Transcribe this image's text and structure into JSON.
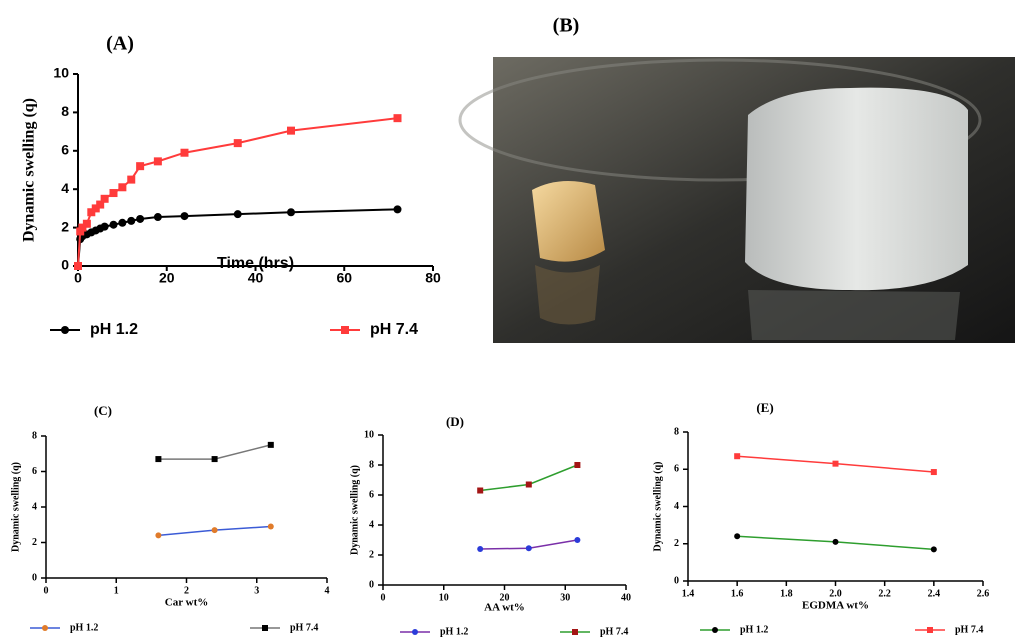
{
  "photo": {
    "label": "(B)"
  },
  "chart_data": [
    {
      "type": "line",
      "title": "(A)",
      "xlabel": "Time (hrs)",
      "ylabel": "Dynamic swelling (q)",
      "x": [
        0,
        0.5,
        1,
        2,
        3,
        4,
        5,
        6,
        8,
        10,
        12,
        14,
        18,
        24,
        36,
        48,
        72
      ],
      "series": [
        {
          "name": "pH 1.2",
          "color": "#000000",
          "line_color": "#000000",
          "marker": "circle",
          "values": [
            0,
            1.4,
            1.55,
            1.65,
            1.75,
            1.85,
            1.95,
            2.05,
            2.15,
            2.25,
            2.35,
            2.45,
            2.55,
            2.6,
            2.7,
            2.8,
            2.95
          ]
        },
        {
          "name": "pH 7.4",
          "color": "#ff3b3b",
          "line_color": "#ff3b3b",
          "marker": "square",
          "values": [
            0,
            1.8,
            2.0,
            2.2,
            2.8,
            3.0,
            3.2,
            3.5,
            3.8,
            4.1,
            4.5,
            5.2,
            5.45,
            5.9,
            6.4,
            7.05,
            7.7
          ]
        }
      ],
      "xlim": [
        0,
        80
      ],
      "xticks": [
        0,
        20,
        40,
        60,
        80
      ],
      "ylim": [
        0,
        10
      ],
      "yticks": [
        0,
        2,
        4,
        6,
        8,
        10
      ]
    },
    {
      "type": "line",
      "title": "(C)",
      "xlabel": "Car wt%",
      "ylabel": "Dynamic swelling (q)",
      "x": [
        1.6,
        2.4,
        3.2
      ],
      "series": [
        {
          "name": "pH 1.2",
          "color": "#e07b2a",
          "line_color": "#3b5bd6",
          "marker": "circle",
          "values": [
            2.4,
            2.7,
            2.9
          ]
        },
        {
          "name": "pH 7.4",
          "color": "#000000",
          "line_color": "#777777",
          "marker": "square",
          "values": [
            6.7,
            6.7,
            7.5
          ]
        }
      ],
      "xlim": [
        0,
        4
      ],
      "xticks": [
        0,
        1,
        2,
        3,
        4
      ],
      "ylim": [
        0,
        8
      ],
      "yticks": [
        0,
        2,
        4,
        6,
        8
      ]
    },
    {
      "type": "line",
      "title": "(D)",
      "xlabel": "AA wt%",
      "ylabel": "Dynamic swelling (q)",
      "x": [
        16,
        24,
        32
      ],
      "series": [
        {
          "name": "pH 1.2",
          "color": "#2b3bd9",
          "line_color": "#7a2fa8",
          "marker": "circle",
          "values": [
            2.4,
            2.45,
            3.0
          ]
        },
        {
          "name": "pH 7.4",
          "color": "#a31515",
          "line_color": "#2e9e2e",
          "marker": "square",
          "values": [
            6.3,
            6.7,
            8.0
          ]
        }
      ],
      "xlim": [
        0,
        40
      ],
      "xticks": [
        0,
        10,
        20,
        30,
        40
      ],
      "ylim": [
        0,
        10
      ],
      "yticks": [
        0,
        2,
        4,
        6,
        8,
        10
      ]
    },
    {
      "type": "line",
      "title": "(E)",
      "xlabel": "EGDMA wt%",
      "ylabel": "Dynamic swelling (q)",
      "x": [
        1.6,
        2.0,
        2.4
      ],
      "series": [
        {
          "name": "pH 1.2",
          "color": "#000000",
          "line_color": "#2e9e2e",
          "marker": "circle",
          "values": [
            2.4,
            2.1,
            1.7
          ]
        },
        {
          "name": "pH 7.4",
          "color": "#ff3b3b",
          "line_color": "#ff3b3b",
          "marker": "square",
          "values": [
            6.7,
            6.3,
            5.85
          ]
        }
      ],
      "xlim": [
        1.4,
        2.6
      ],
      "xticks": [
        1.4,
        1.6,
        1.8,
        {
          "value": 2,
          "label": "2.0"
        },
        2.2,
        2.4,
        2.6
      ],
      "ylim": [
        0,
        8
      ],
      "yticks": [
        0,
        2,
        4,
        6,
        8
      ]
    }
  ]
}
